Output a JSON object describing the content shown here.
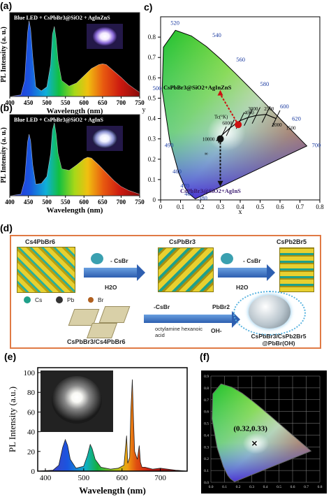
{
  "panel_labels": {
    "a": "(a)",
    "b": "(b)",
    "c": "c)",
    "d": "(d)",
    "e": "(e)",
    "f": "(f)"
  },
  "chart_data": [
    {
      "id": "a",
      "type": "line",
      "title": "Blue LED + CsPbBr3@SiO2 + AgInZnS",
      "xlabel": "Wavelength (nm)",
      "ylabel": "PL Intensity (a. u.)",
      "xlim": [
        400,
        750
      ],
      "xticks": [
        "400",
        "450",
        "500",
        "550",
        "600",
        "650",
        "700",
        "750"
      ],
      "x": [
        400,
        430,
        440,
        448,
        452,
        456,
        462,
        470,
        485,
        500,
        510,
        515,
        520,
        525,
        530,
        540,
        560,
        580,
        600,
        620,
        640,
        650,
        660,
        680,
        700,
        720,
        750
      ],
      "y": [
        0.0,
        0.02,
        0.2,
        0.8,
        0.95,
        0.85,
        0.5,
        0.12,
        0.07,
        0.12,
        0.4,
        0.78,
        0.88,
        0.72,
        0.45,
        0.2,
        0.13,
        0.17,
        0.26,
        0.35,
        0.4,
        0.41,
        0.4,
        0.32,
        0.24,
        0.15,
        0.05
      ]
    },
    {
      "id": "b",
      "type": "line",
      "title": "Blue LED + CsPbBr3@SiO2 + AgInS",
      "xlabel": "Wavelength (nm)",
      "ylabel": "PL Intensity (a. u.)",
      "xlim": [
        400,
        750
      ],
      "xticks": [
        "400",
        "450",
        "500",
        "550",
        "600",
        "650",
        "700",
        "750"
      ],
      "x": [
        400,
        430,
        440,
        448,
        452,
        456,
        462,
        470,
        485,
        500,
        510,
        515,
        520,
        525,
        530,
        540,
        560,
        580,
        600,
        610,
        620,
        640,
        660,
        680,
        700,
        720,
        750
      ],
      "y": [
        0.0,
        0.02,
        0.2,
        0.7,
        0.8,
        0.72,
        0.4,
        0.15,
        0.16,
        0.25,
        0.55,
        0.85,
        0.95,
        0.8,
        0.55,
        0.35,
        0.33,
        0.4,
        0.48,
        0.5,
        0.49,
        0.4,
        0.3,
        0.2,
        0.12,
        0.07,
        0.02
      ]
    },
    {
      "id": "c",
      "type": "scatter",
      "xlabel": "x",
      "ylabel": "y",
      "xlim": [
        0,
        0.8
      ],
      "ylim": [
        0,
        0.9
      ],
      "xticks": [
        "0",
        "0.1",
        "0.2",
        "0.3",
        "0.4",
        "0.5",
        "0.6",
        "0.7",
        "0.8"
      ],
      "yticks": [
        "0",
        "0.1",
        "0.2",
        "0.3",
        "0.4",
        "0.5",
        "0.6",
        "0.7",
        "0.8"
      ],
      "wavelength_labels": [
        "380",
        "460",
        "470",
        "480",
        "490",
        "500",
        "520",
        "540",
        "560",
        "580",
        "600",
        "620",
        "700"
      ],
      "planckian_labels": [
        "Tc(°K)",
        "10000",
        "6000",
        "4000",
        "3000",
        "2500",
        "2000",
        "1500",
        "∞"
      ],
      "annotations": [
        "CsPbBr3@SiO2+AgInZnS",
        "CsPbBr3@SiO2+AgInS"
      ],
      "points": [
        {
          "name": "CsPbBr3@SiO2+AgInZnS",
          "x": 0.39,
          "y": 0.37,
          "color": "#cc1111"
        },
        {
          "name": "CsPbBr3@SiO2+AgInS",
          "x": 0.3,
          "y": 0.3,
          "color": "#111111"
        }
      ]
    },
    {
      "id": "e",
      "type": "line",
      "xlabel": "Wavelength (nm)",
      "ylabel": "PL Intensity (a.u.)",
      "xlim": [
        380,
        770
      ],
      "ylim": [
        0,
        105
      ],
      "xticks": [
        "400",
        "500",
        "600",
        "700"
      ],
      "yticks": [
        "0",
        "20",
        "40",
        "60",
        "80",
        "100"
      ],
      "x": [
        380,
        420,
        435,
        445,
        452,
        458,
        465,
        480,
        500,
        510,
        517,
        522,
        530,
        545,
        570,
        590,
        605,
        612,
        615,
        620,
        623,
        627,
        630,
        633,
        640,
        645,
        648,
        652,
        660,
        680,
        700,
        740,
        770
      ],
      "y": [
        0,
        1,
        6,
        24,
        32,
        26,
        12,
        3,
        5,
        16,
        27,
        23,
        12,
        4,
        2,
        3,
        6,
        36,
        8,
        14,
        60,
        93,
        52,
        20,
        12,
        26,
        9,
        4,
        4,
        2,
        3,
        1,
        0
      ]
    },
    {
      "id": "f",
      "type": "scatter",
      "xlim": [
        0,
        0.8
      ],
      "ylim": [
        0,
        0.9
      ],
      "xticks": [
        "0.0",
        "0.1",
        "0.2",
        "0.3",
        "0.4",
        "0.5",
        "0.6",
        "0.7",
        "0.8"
      ],
      "yticks": [
        "0.0",
        "0.1",
        "0.2",
        "0.3",
        "0.4",
        "0.5",
        "0.6",
        "0.7",
        "0.8",
        "0.9"
      ],
      "points": [
        {
          "x": 0.32,
          "y": 0.33,
          "label": "(0.32,0.33)"
        }
      ]
    }
  ],
  "panel_d": {
    "labels": {
      "cs4pbbr6": "Cs4PbBr6",
      "cspbbr3": "CsPbBr3",
      "cspb2br5": "CsPb2Br5",
      "csbr1": "- CsBr",
      "h2o1": "H2O",
      "csbr2": "- CsBr",
      "h2o2": "H2O",
      "cs": "Cs",
      "pb": "Pb",
      "br": "Br",
      "composite": "CsPbBr3/Cs4PbBr6",
      "neg_csbr": "-CsBr",
      "ligands": "octylamine hexanoic acid",
      "pbbr2": "PbBr2",
      "oh": "OH-",
      "product": "CsPbBr3/CsPb2Br5 @PbBr(OH)"
    },
    "colors": {
      "border": "#e07a45",
      "arrow": "#2e5fb0",
      "crystal": "#d8c020",
      "cs_atom": "#1fa08a"
    }
  }
}
